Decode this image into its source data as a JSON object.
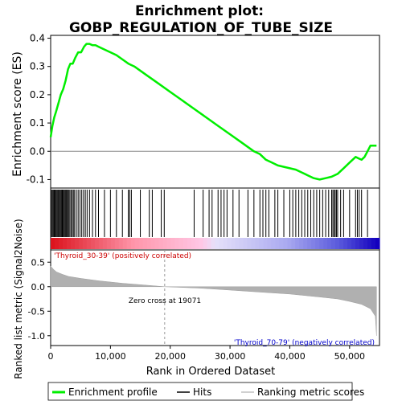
{
  "chart_data": {
    "type": "line",
    "title_line1": "Enrichment plot:",
    "title_line2": "GOBP_REGULATION_OF_TUBE_SIZE",
    "top_panel": {
      "ylabel": "Enrichment score (ES)",
      "ylim": [
        -0.13,
        0.41
      ],
      "yticks": [
        -0.1,
        0.0,
        0.1,
        0.2,
        0.3,
        0.4
      ],
      "ytick_labels": [
        "-0.1",
        "0.0",
        "0.1",
        "0.2",
        "0.3",
        "0.4"
      ],
      "series_color": "#00ee00",
      "enrichment_profile": {
        "x": [
          0,
          300,
          600,
          900,
          1300,
          1700,
          2100,
          2500,
          2900,
          3300,
          3700,
          4100,
          4600,
          5100,
          5600,
          6000,
          6500,
          7000,
          7500,
          8000,
          9000,
          10000,
          11000,
          12000,
          13000,
          14000,
          16000,
          18000,
          20000,
          22000,
          24000,
          26000,
          28000,
          30000,
          32000,
          34000,
          35000,
          36000,
          37000,
          38000,
          39000,
          40000,
          41000,
          42000,
          43000,
          44000,
          45000,
          46000,
          47000,
          48000,
          49000,
          50000,
          51000,
          51500,
          52000,
          52500,
          53000,
          53500,
          54000,
          54500
        ],
        "es": [
          0.05,
          0.09,
          0.12,
          0.14,
          0.17,
          0.2,
          0.22,
          0.25,
          0.29,
          0.31,
          0.31,
          0.33,
          0.35,
          0.35,
          0.37,
          0.38,
          0.38,
          0.375,
          0.375,
          0.37,
          0.36,
          0.35,
          0.34,
          0.325,
          0.31,
          0.3,
          0.27,
          0.24,
          0.21,
          0.18,
          0.15,
          0.12,
          0.09,
          0.06,
          0.03,
          0.0,
          -0.01,
          -0.03,
          -0.04,
          -0.05,
          -0.055,
          -0.06,
          -0.065,
          -0.075,
          -0.085,
          -0.095,
          -0.1,
          -0.095,
          -0.09,
          -0.08,
          -0.06,
          -0.04,
          -0.02,
          -0.025,
          -0.03,
          -0.02,
          0.0,
          0.02,
          0.02,
          0.02
        ]
      }
    },
    "hits": [
      150,
      300,
      450,
      600,
      750,
      900,
      1050,
      1200,
      1350,
      1500,
      1650,
      1800,
      1950,
      2100,
      2250,
      2400,
      2550,
      2700,
      2850,
      3000,
      3200,
      3400,
      3600,
      3800,
      4000,
      4300,
      4600,
      4900,
      5200,
      5500,
      5800,
      6100,
      6500,
      7000,
      7500,
      8000,
      9000,
      10000,
      11000,
      12000,
      13000,
      13200,
      13500,
      15000,
      16500,
      17000,
      18500,
      19000,
      24000,
      25500,
      26500,
      27000,
      28000,
      28500,
      29000,
      29500,
      30500,
      31500,
      33000,
      34000,
      35000,
      35500,
      36000,
      36500,
      37500,
      38000,
      39000,
      40000,
      40500,
      41000,
      41500,
      42000,
      42500,
      43000,
      43500,
      44000,
      44500,
      45000,
      45500,
      46000,
      46500,
      47000,
      47200,
      47400,
      47600,
      47800,
      48000,
      48500,
      49000,
      50000,
      51000,
      51300,
      51600,
      52000,
      53000
    ],
    "bottom_panel": {
      "ylabel": "Ranked list metric (Signal2Noise)",
      "xlabel": "Rank in Ordered Dataset",
      "ylim": [
        -1.2,
        0.75
      ],
      "yticks": [
        0.5,
        0.0,
        -0.5,
        -1.0
      ],
      "ytick_labels": [
        "0.5",
        "0.0",
        "-0.5",
        "-1.0"
      ],
      "xlim": [
        0,
        55000
      ],
      "xticks": [
        0,
        10000,
        20000,
        30000,
        40000,
        50000
      ],
      "xtick_labels": [
        "0",
        "10,000",
        "20,000",
        "30,000",
        "40,000",
        "50,000"
      ],
      "metric_rank": [
        0,
        500,
        1000,
        2000,
        3000,
        5000,
        8000,
        12000,
        16000,
        19071,
        25000,
        30000,
        35000,
        40000,
        45000,
        48000,
        50000,
        52000,
        53500,
        54300,
        54500
      ],
      "metric_value": [
        0.42,
        0.35,
        0.3,
        0.25,
        0.21,
        0.17,
        0.12,
        0.07,
        0.03,
        0.0,
        -0.03,
        -0.07,
        -0.11,
        -0.15,
        -0.21,
        -0.25,
        -0.3,
        -0.36,
        -0.45,
        -0.6,
        -1.0
      ],
      "zero_cross_label": "Zero cross at 19071",
      "zero_cross": 19071,
      "pos_label": "'Thyroid_30-39' (positively correlated)",
      "neg_label": "'Thyroid_70-79' (negatively correlated)"
    },
    "legend": {
      "placement": "bottom",
      "items": [
        {
          "label": "Enrichment profile",
          "color": "#00ee00"
        },
        {
          "label": "Hits",
          "color": "#000000"
        },
        {
          "label": "Ranking metric scores",
          "color": "#c0c0c0"
        }
      ]
    }
  }
}
